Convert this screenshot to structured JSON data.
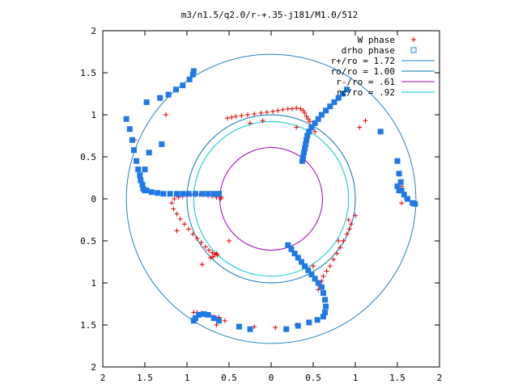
{
  "chart_data": {
    "type": "scatter",
    "title": "m3/n1.5/q2.0/r-+.35-j181/M1.0/512",
    "xlim": [
      -2,
      2
    ],
    "ylim": [
      -2,
      2
    ],
    "x_ticks": [
      -2,
      -1.5,
      -1,
      -0.5,
      0,
      0.5,
      1,
      1.5,
      2
    ],
    "y_ticks": [
      -2,
      -1.5,
      -1,
      -0.5,
      0,
      0.5,
      1,
      1.5,
      2
    ],
    "x_tick_labels": [
      "2",
      "1.5",
      "1",
      "0.5",
      "0",
      "0.5",
      "1",
      "1.5",
      "2"
    ],
    "y_tick_labels": [
      "2",
      "1.5",
      "1",
      "0.5",
      "0",
      "0.5",
      "1",
      "1.5",
      "2"
    ],
    "grid": false,
    "legend_position": "top-right",
    "colors": {
      "w_phase": "#e00000",
      "drho_phase": "#1e78e6",
      "r_plus": "#2080c0",
      "ro": "#0a74b8",
      "r_minus": "#a000c0",
      "rc": "#00c8d0"
    },
    "legend": [
      {
        "label": "W phase",
        "marker": "plus",
        "color": "#e00000"
      },
      {
        "label": "drho phase",
        "marker": "open-square",
        "color": "#1e78e6"
      },
      {
        "label": "r+/ro = 1.72",
        "marker": "line",
        "color": "#2080c0"
      },
      {
        "label": "ro/ro = 1.00",
        "marker": "line",
        "color": "#0a74b8"
      },
      {
        "label": "r-/ro =  .61",
        "marker": "line",
        "color": "#a000c0"
      },
      {
        "label": "rc/ro =  .92",
        "marker": "line",
        "color": "#00c8d0"
      }
    ],
    "circles": [
      {
        "name": "r+/ro",
        "radius": 1.72
      },
      {
        "name": "ro/ro",
        "radius": 1.0
      },
      {
        "name": "r-/ro",
        "radius": 0.61
      },
      {
        "name": "rc/ro",
        "radius": 0.92
      }
    ],
    "series": [
      {
        "name": "W phase",
        "marker": "plus",
        "points": [
          [
            -0.59,
            0.02
          ],
          [
            -0.6,
            0.0
          ],
          [
            -0.65,
            0.02
          ],
          [
            -0.7,
            0.03
          ],
          [
            -0.75,
            0.04
          ],
          [
            -0.8,
            0.05
          ],
          [
            -0.85,
            0.05
          ],
          [
            -0.9,
            0.05
          ],
          [
            -0.95,
            0.05
          ],
          [
            -1.0,
            0.04
          ],
          [
            -1.05,
            0.03
          ],
          [
            -1.1,
            0.02
          ],
          [
            -1.15,
            0.0
          ],
          [
            -1.18,
            -0.05
          ],
          [
            -1.16,
            -0.12
          ],
          [
            -1.12,
            -0.18
          ],
          [
            -1.08,
            -0.24
          ],
          [
            -1.03,
            -0.3
          ],
          [
            -0.98,
            -0.36
          ],
          [
            -0.93,
            -0.42
          ],
          [
            -0.88,
            -0.47
          ],
          [
            -0.83,
            -0.52
          ],
          [
            -0.78,
            -0.57
          ],
          [
            -0.74,
            -0.61
          ],
          [
            -0.7,
            -0.64
          ],
          [
            -0.67,
            -0.66
          ],
          [
            -0.64,
            -0.67
          ],
          [
            -0.69,
            -0.69
          ],
          [
            -0.72,
            -0.7
          ],
          [
            -0.52,
            0.96
          ],
          [
            -0.47,
            0.97
          ],
          [
            -0.42,
            0.98
          ],
          [
            -0.35,
            0.99
          ],
          [
            -0.28,
            1.0
          ],
          [
            -0.2,
            1.01
          ],
          [
            -0.12,
            1.02
          ],
          [
            -0.05,
            1.03
          ],
          [
            0.02,
            1.04
          ],
          [
            0.08,
            1.05
          ],
          [
            0.14,
            1.06
          ],
          [
            0.2,
            1.07
          ],
          [
            0.25,
            1.07
          ],
          [
            0.3,
            1.08
          ],
          [
            0.35,
            1.07
          ],
          [
            0.38,
            1.05
          ],
          [
            0.4,
            1.02
          ],
          [
            0.42,
            0.98
          ],
          [
            0.44,
            0.95
          ],
          [
            0.46,
            0.92
          ],
          [
            0.52,
            0.8
          ],
          [
            0.92,
            -0.25
          ],
          [
            0.95,
            -0.3
          ],
          [
            0.93,
            -0.36
          ],
          [
            0.9,
            -0.42
          ],
          [
            0.86,
            -0.5
          ],
          [
            0.82,
            -0.58
          ],
          [
            0.78,
            -0.65
          ],
          [
            0.74,
            -0.72
          ],
          [
            0.7,
            -0.8
          ],
          [
            0.66,
            -0.86
          ],
          [
            0.62,
            -0.92
          ],
          [
            0.6,
            -0.98
          ],
          [
            0.58,
            -1.04
          ],
          [
            0.56,
            -1.08
          ],
          [
            -0.92,
            -1.35
          ],
          [
            -0.88,
            -1.35
          ],
          [
            -0.83,
            -1.36
          ],
          [
            -0.78,
            -1.37
          ],
          [
            -0.73,
            -1.38
          ],
          [
            -0.68,
            -1.4
          ],
          [
            -0.62,
            -1.41
          ],
          [
            -0.25,
            0.9
          ],
          [
            -0.1,
            0.93
          ],
          [
            0.3,
            0.85
          ],
          [
            0.05,
            -1.53
          ],
          [
            -0.2,
            -1.52
          ],
          [
            0.3,
            -1.5
          ],
          [
            -0.65,
            -0.65
          ],
          [
            -0.5,
            -0.5
          ],
          [
            -1.12,
            -0.38
          ],
          [
            -0.82,
            -0.78
          ],
          [
            1.12,
            0.93
          ],
          [
            1.05,
            0.85
          ],
          [
            1.5,
            0.45
          ],
          [
            1.55,
            0.15
          ],
          [
            1.6,
            0.0
          ],
          [
            1.55,
            -0.05
          ],
          [
            -1.62,
            0.7
          ],
          [
            -1.55,
            0.3
          ],
          [
            -1.25,
            1.0
          ],
          [
            0.5,
            -0.8
          ],
          [
            0.8,
            -0.5
          ],
          [
            1.0,
            -0.2
          ],
          [
            -0.55,
            -1.45
          ],
          [
            -0.65,
            -1.5
          ]
        ]
      },
      {
        "name": "drho phase",
        "marker": "open-square",
        "points": [
          [
            -1.55,
            0.22
          ],
          [
            -1.53,
            0.17
          ],
          [
            -1.52,
            0.12
          ],
          [
            -1.5,
            0.1
          ],
          [
            -1.48,
            0.1
          ],
          [
            -1.42,
            0.08
          ],
          [
            -1.35,
            0.07
          ],
          [
            -1.28,
            0.06
          ],
          [
            -1.2,
            0.06
          ],
          [
            -1.12,
            0.06
          ],
          [
            -1.05,
            0.06
          ],
          [
            -0.98,
            0.06
          ],
          [
            -0.9,
            0.06
          ],
          [
            -0.82,
            0.06
          ],
          [
            -0.75,
            0.06
          ],
          [
            -0.68,
            0.06
          ],
          [
            -0.62,
            0.06
          ],
          [
            -1.56,
            0.28
          ],
          [
            -1.58,
            0.35
          ],
          [
            -1.6,
            0.45
          ],
          [
            -1.63,
            0.58
          ],
          [
            -1.65,
            0.7
          ],
          [
            -1.68,
            0.83
          ],
          [
            -1.72,
            0.95
          ],
          [
            -1.48,
            1.15
          ],
          [
            -1.32,
            1.2
          ],
          [
            -1.22,
            1.24
          ],
          [
            -1.13,
            1.3
          ],
          [
            -1.05,
            1.35
          ],
          [
            -0.97,
            1.42
          ],
          [
            -0.93,
            1.48
          ],
          [
            -0.92,
            1.52
          ],
          [
            0.37,
            0.45
          ],
          [
            0.38,
            0.5
          ],
          [
            0.39,
            0.55
          ],
          [
            0.4,
            0.6
          ],
          [
            0.41,
            0.65
          ],
          [
            0.42,
            0.7
          ],
          [
            0.43,
            0.75
          ],
          [
            0.45,
            0.8
          ],
          [
            0.48,
            0.85
          ],
          [
            0.52,
            0.9
          ],
          [
            0.56,
            0.95
          ],
          [
            0.6,
            1.0
          ],
          [
            0.65,
            1.05
          ],
          [
            0.7,
            1.1
          ],
          [
            0.75,
            1.15
          ],
          [
            0.8,
            1.2
          ],
          [
            0.85,
            1.25
          ],
          [
            0.9,
            1.3
          ],
          [
            0.2,
            -0.55
          ],
          [
            0.24,
            -0.6
          ],
          [
            0.28,
            -0.65
          ],
          [
            0.32,
            -0.7
          ],
          [
            0.36,
            -0.75
          ],
          [
            0.4,
            -0.8
          ],
          [
            0.44,
            -0.85
          ],
          [
            0.48,
            -0.9
          ],
          [
            0.52,
            -0.95
          ],
          [
            0.56,
            -1.0
          ],
          [
            0.6,
            -1.05
          ],
          [
            0.62,
            -1.12
          ],
          [
            0.64,
            -1.2
          ],
          [
            0.65,
            -1.28
          ],
          [
            0.64,
            -1.35
          ],
          [
            0.62,
            -1.4
          ],
          [
            -0.92,
            -1.45
          ],
          [
            -0.9,
            -1.42
          ],
          [
            -0.86,
            -1.38
          ],
          [
            -0.8,
            -1.37
          ],
          [
            -0.75,
            -1.38
          ],
          [
            -0.68,
            -1.42
          ],
          [
            -0.62,
            -1.45
          ],
          [
            -0.38,
            -1.52
          ],
          [
            -0.25,
            -1.55
          ],
          [
            0.18,
            -1.55
          ],
          [
            0.32,
            -1.51
          ],
          [
            0.45,
            -1.47
          ],
          [
            0.55,
            -1.44
          ],
          [
            1.5,
            0.45
          ],
          [
            1.52,
            0.3
          ],
          [
            1.54,
            0.2
          ],
          [
            1.55,
            0.1
          ],
          [
            1.58,
            0.05
          ],
          [
            1.62,
            0.0
          ],
          [
            1.68,
            -0.05
          ],
          [
            1.71,
            -0.06
          ],
          [
            1.52,
            0.1
          ],
          [
            1.5,
            0.15
          ],
          [
            1.3,
            0.8
          ],
          [
            -1.45,
            0.55
          ],
          [
            -1.3,
            0.65
          ],
          [
            -1.5,
            0.35
          ]
        ]
      }
    ]
  }
}
